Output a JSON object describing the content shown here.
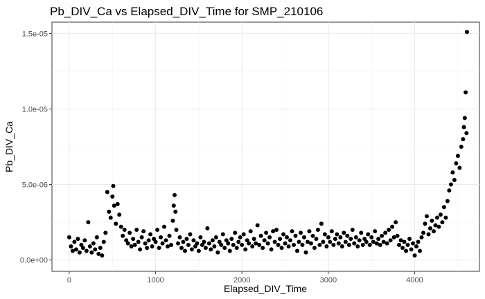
{
  "chart_data": {
    "type": "scatter",
    "title": "Pb_DIV_Ca vs Elapsed_DIV_Time for SMP_210106",
    "xlabel": "Elapsed_DIV_Time",
    "ylabel": "Pb_DIV_Ca",
    "xlim": [
      -200,
      4750
    ],
    "ylim": [
      -7.5e-07,
      1.575e-05
    ],
    "x_ticks": [
      {
        "value": 0,
        "label": "0"
      },
      {
        "value": 1000,
        "label": "1000"
      },
      {
        "value": 2000,
        "label": "2000"
      },
      {
        "value": 3000,
        "label": "3000"
      },
      {
        "value": 4000,
        "label": "4000"
      }
    ],
    "y_ticks": [
      {
        "value": 0,
        "label": "0.0e+00"
      },
      {
        "value": 5e-06,
        "label": "5.0e-06"
      },
      {
        "value": 1e-05,
        "label": "1.0e-05"
      },
      {
        "value": 1.5e-05,
        "label": "1.5e-05"
      }
    ],
    "grid": true,
    "point_color": "#000000",
    "points": [
      [
        0,
        1.5e-06
      ],
      [
        20,
        9e-07
      ],
      [
        40,
        6e-07
      ],
      [
        60,
        1.2e-06
      ],
      [
        80,
        7e-07
      ],
      [
        100,
        1.4e-06
      ],
      [
        120,
        5e-07
      ],
      [
        140,
        1e-06
      ],
      [
        160,
        8e-07
      ],
      [
        180,
        1.3e-06
      ],
      [
        200,
        6e-07
      ],
      [
        220,
        2.5e-06
      ],
      [
        240,
        9e-07
      ],
      [
        260,
        5e-07
      ],
      [
        280,
        1.1e-06
      ],
      [
        300,
        7e-07
      ],
      [
        320,
        1.5e-06
      ],
      [
        340,
        4e-07
      ],
      [
        360,
        8e-07
      ],
      [
        380,
        3e-07
      ],
      [
        400,
        1.2e-06
      ],
      [
        420,
        1.8e-06
      ],
      [
        440,
        4.5e-06
      ],
      [
        460,
        3.2e-06
      ],
      [
        480,
        2.8e-06
      ],
      [
        500,
        4.2e-06
      ],
      [
        510,
        4.9e-06
      ],
      [
        520,
        3.6e-06
      ],
      [
        540,
        2.4e-06
      ],
      [
        560,
        3.7e-06
      ],
      [
        580,
        3e-06
      ],
      [
        600,
        2.2e-06
      ],
      [
        620,
        1.6e-06
      ],
      [
        640,
        2e-06
      ],
      [
        660,
        1.3e-06
      ],
      [
        680,
        1.1e-06
      ],
      [
        700,
        1.8e-06
      ],
      [
        720,
        9e-07
      ],
      [
        740,
        1.4e-06
      ],
      [
        760,
        1e-06
      ],
      [
        780,
        2e-06
      ],
      [
        800,
        1.2e-06
      ],
      [
        820,
        7e-07
      ],
      [
        840,
        1.5e-06
      ],
      [
        860,
        1.9e-06
      ],
      [
        880,
        1.1e-06
      ],
      [
        900,
        8e-07
      ],
      [
        920,
        1.3e-06
      ],
      [
        940,
        1.7e-06
      ],
      [
        960,
        9e-07
      ],
      [
        980,
        1.4e-06
      ],
      [
        1000,
        1.2e-06
      ],
      [
        1020,
        2e-06
      ],
      [
        1040,
        8e-07
      ],
      [
        1060,
        1.5e-06
      ],
      [
        1080,
        1.1e-06
      ],
      [
        1100,
        2.2e-06
      ],
      [
        1120,
        1.3e-06
      ],
      [
        1140,
        9e-07
      ],
      [
        1160,
        1.6e-06
      ],
      [
        1180,
        1e-06
      ],
      [
        1200,
        2.6e-06
      ],
      [
        1210,
        3.6e-06
      ],
      [
        1220,
        4.3e-06
      ],
      [
        1230,
        3.2e-06
      ],
      [
        1240,
        2e-06
      ],
      [
        1260,
        1.1e-06
      ],
      [
        1280,
        1.5e-06
      ],
      [
        1300,
        8e-07
      ],
      [
        1320,
        1.2e-06
      ],
      [
        1340,
        6e-07
      ],
      [
        1360,
        1.4e-06
      ],
      [
        1380,
        1e-06
      ],
      [
        1400,
        1.7e-06
      ],
      [
        1420,
        7e-07
      ],
      [
        1440,
        1.3e-06
      ],
      [
        1460,
        9e-07
      ],
      [
        1480,
        1.1e-06
      ],
      [
        1500,
        6e-07
      ],
      [
        1520,
        1.5e-06
      ],
      [
        1540,
        1e-06
      ],
      [
        1560,
        1.2e-06
      ],
      [
        1580,
        8e-07
      ],
      [
        1600,
        2.1e-06
      ],
      [
        1620,
        1.1e-06
      ],
      [
        1640,
        7e-07
      ],
      [
        1660,
        1.3e-06
      ],
      [
        1680,
        9e-07
      ],
      [
        1700,
        1.5e-06
      ],
      [
        1720,
        5e-07
      ],
      [
        1740,
        1.2e-06
      ],
      [
        1760,
        1e-06
      ],
      [
        1780,
        1.7e-06
      ],
      [
        1800,
        8e-07
      ],
      [
        1820,
        1.3e-06
      ],
      [
        1840,
        1.1e-06
      ],
      [
        1860,
        6e-07
      ],
      [
        1880,
        1.4e-06
      ],
      [
        1900,
        1e-06
      ],
      [
        1920,
        1.8e-06
      ],
      [
        1940,
        8e-07
      ],
      [
        1960,
        1.2e-06
      ],
      [
        1980,
        1.5e-06
      ],
      [
        2000,
        1e-06
      ],
      [
        2020,
        1.7e-06
      ],
      [
        2040,
        7e-07
      ],
      [
        2060,
        1.3e-06
      ],
      [
        2080,
        1.1e-06
      ],
      [
        2100,
        1.9e-06
      ],
      [
        2120,
        9e-07
      ],
      [
        2140,
        1.4e-06
      ],
      [
        2160,
        1.1e-06
      ],
      [
        2180,
        2.3e-06
      ],
      [
        2200,
        1e-06
      ],
      [
        2220,
        1.6e-06
      ],
      [
        2240,
        8e-07
      ],
      [
        2260,
        1.3e-06
      ],
      [
        2280,
        1.8e-06
      ],
      [
        2300,
        1.1e-06
      ],
      [
        2320,
        1.5e-06
      ],
      [
        2340,
        7e-07
      ],
      [
        2360,
        1.9e-06
      ],
      [
        2380,
        1.2e-06
      ],
      [
        2400,
        2e-06
      ],
      [
        2420,
        1e-06
      ],
      [
        2440,
        1.4e-06
      ],
      [
        2460,
        8e-07
      ],
      [
        2480,
        1.7e-06
      ],
      [
        2500,
        1.1e-06
      ],
      [
        2520,
        1.5e-06
      ],
      [
        2540,
        9e-07
      ],
      [
        2560,
        1.3e-06
      ],
      [
        2580,
        1.9e-06
      ],
      [
        2600,
        1e-06
      ],
      [
        2620,
        1.6e-06
      ],
      [
        2640,
        6e-07
      ],
      [
        2660,
        1.2e-06
      ],
      [
        2680,
        1.8e-06
      ],
      [
        2700,
        1e-06
      ],
      [
        2720,
        1.5e-06
      ],
      [
        2740,
        5e-07
      ],
      [
        2760,
        1.2e-06
      ],
      [
        2780,
        1.9e-06
      ],
      [
        2800,
        1.1e-06
      ],
      [
        2820,
        1.6e-06
      ],
      [
        2840,
        8e-07
      ],
      [
        2860,
        1.4e-06
      ],
      [
        2880,
        2e-06
      ],
      [
        2900,
        1e-06
      ],
      [
        2920,
        2.4e-06
      ],
      [
        2940,
        1.2e-06
      ],
      [
        2960,
        1.7e-06
      ],
      [
        2980,
        9e-07
      ],
      [
        3000,
        1.5e-06
      ],
      [
        3020,
        1.2e-06
      ],
      [
        3040,
        1.9e-06
      ],
      [
        3060,
        1e-06
      ],
      [
        3080,
        1.4e-06
      ],
      [
        3100,
        1.7e-06
      ],
      [
        3120,
        1.1e-06
      ],
      [
        3140,
        1.5e-06
      ],
      [
        3160,
        9e-07
      ],
      [
        3180,
        1.8e-06
      ],
      [
        3200,
        1.2e-06
      ],
      [
        3220,
        1.6e-06
      ],
      [
        3240,
        1e-06
      ],
      [
        3260,
        1.4e-06
      ],
      [
        3280,
        2e-06
      ],
      [
        3300,
        1.1e-06
      ],
      [
        3320,
        1.5e-06
      ],
      [
        3340,
        9e-07
      ],
      [
        3360,
        1.3e-06
      ],
      [
        3380,
        1.8e-06
      ],
      [
        3400,
        1e-06
      ],
      [
        3420,
        1.4e-06
      ],
      [
        3440,
        1.2e-06
      ],
      [
        3460,
        1.7e-06
      ],
      [
        3480,
        1e-06
      ],
      [
        3500,
        1.5e-06
      ],
      [
        3520,
        1.2e-06
      ],
      [
        3540,
        1.9e-06
      ],
      [
        3560,
        1.1e-06
      ],
      [
        3580,
        1.4e-06
      ],
      [
        3600,
        1e-06
      ],
      [
        3620,
        1.6e-06
      ],
      [
        3640,
        1.2e-06
      ],
      [
        3660,
        1.8e-06
      ],
      [
        3680,
        1.1e-06
      ],
      [
        3700,
        2e-06
      ],
      [
        3720,
        1.3e-06
      ],
      [
        3740,
        2.2e-06
      ],
      [
        3760,
        1.5e-06
      ],
      [
        3780,
        2.5e-06
      ],
      [
        3800,
        1.6e-06
      ],
      [
        3820,
        1e-06
      ],
      [
        3840,
        1.3e-06
      ],
      [
        3860,
        8e-07
      ],
      [
        3880,
        1.2e-06
      ],
      [
        3900,
        6e-07
      ],
      [
        3920,
        1e-06
      ],
      [
        3940,
        1.4e-06
      ],
      [
        3960,
        7e-07
      ],
      [
        3980,
        1.1e-06
      ],
      [
        4000,
        3e-07
      ],
      [
        4020,
        9e-07
      ],
      [
        4040,
        1.2e-06
      ],
      [
        4060,
        6e-07
      ],
      [
        4080,
        1.5e-06
      ],
      [
        4100,
        1.8e-06
      ],
      [
        4120,
        2.4e-06
      ],
      [
        4140,
        2.9e-06
      ],
      [
        4160,
        1.7e-06
      ],
      [
        4180,
        2.1e-06
      ],
      [
        4200,
        2.6e-06
      ],
      [
        4220,
        1.9e-06
      ],
      [
        4240,
        2.3e-06
      ],
      [
        4260,
        2.8e-06
      ],
      [
        4280,
        2.2e-06
      ],
      [
        4300,
        3e-06
      ],
      [
        4320,
        2.5e-06
      ],
      [
        4340,
        3.5e-06
      ],
      [
        4360,
        2.8e-06
      ],
      [
        4380,
        3.9e-06
      ],
      [
        4400,
        4.6e-06
      ],
      [
        4420,
        5e-06
      ],
      [
        4440,
        5.8e-06
      ],
      [
        4460,
        5.3e-06
      ],
      [
        4480,
        6.4e-06
      ],
      [
        4500,
        6.9e-06
      ],
      [
        4520,
        6.1e-06
      ],
      [
        4540,
        7.5e-06
      ],
      [
        4560,
        8e-06
      ],
      [
        4570,
        8.8e-06
      ],
      [
        4580,
        9.4e-06
      ],
      [
        4590,
        1.11e-05
      ],
      [
        4600,
        8.4e-06
      ],
      [
        4605,
        1.51e-05
      ]
    ]
  }
}
